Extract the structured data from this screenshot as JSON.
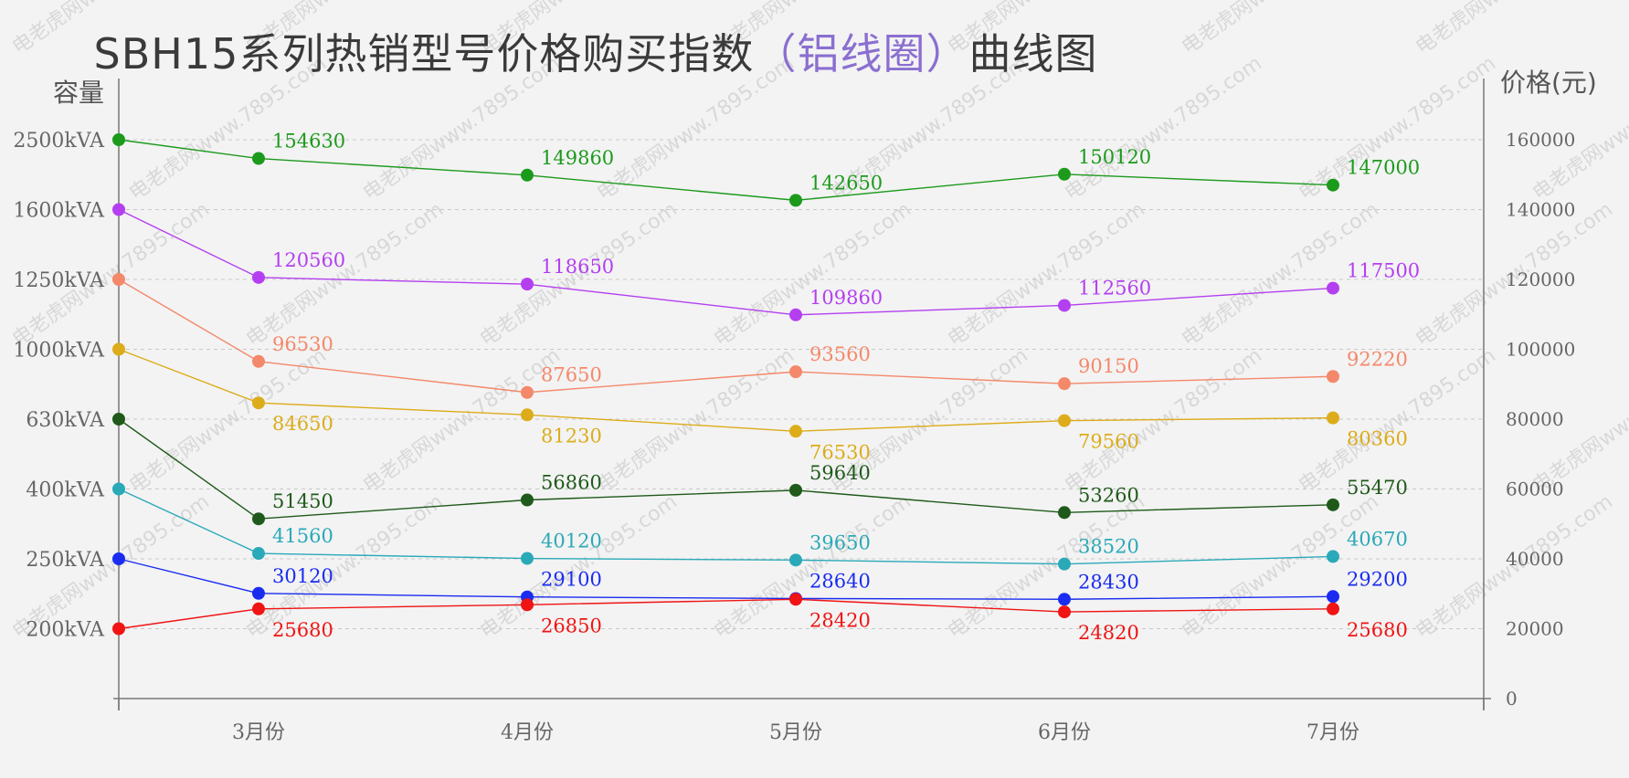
{
  "chart_data": {
    "type": "line",
    "title_parts": [
      "SBH15系列热销型号价格购买指数",
      "（",
      "铝线圈",
      "）",
      "曲线图"
    ],
    "left_axis_title": "容量",
    "right_axis_title": "价格(元)",
    "left_tick_labels": [
      "2500kVA",
      "1600kVA",
      "1250kVA",
      "1000kVA",
      "630kVA",
      "400kVA",
      "250kVA",
      "200kVA"
    ],
    "right_ticks": [
      160000,
      140000,
      120000,
      100000,
      80000,
      60000,
      40000,
      20000,
      0
    ],
    "ylim": [
      0,
      160000
    ],
    "categories": [
      "3月份",
      "4月份",
      "5月份",
      "6月份",
      "7月份"
    ],
    "grid": true,
    "series": [
      {
        "name": "2500kVA",
        "color": "#1c9a1c",
        "start": 160000,
        "values": [
          154630,
          149860,
          142650,
          150120,
          147000
        ],
        "label_pos": "above"
      },
      {
        "name": "1600kVA",
        "color": "#b43ff0",
        "start": 140000,
        "values": [
          120560,
          118650,
          109860,
          112560,
          117500
        ],
        "label_pos": "above"
      },
      {
        "name": "1250kVA",
        "color": "#f4886a",
        "start": 120000,
        "values": [
          96530,
          87650,
          93560,
          90150,
          92220
        ],
        "label_pos": "above"
      },
      {
        "name": "1000kVA",
        "color": "#dcac1a",
        "start": 100000,
        "values": [
          84650,
          81230,
          76530,
          79560,
          80360
        ],
        "label_pos": "below"
      },
      {
        "name": "630kVA",
        "color": "#1f5a1a",
        "start": 80000,
        "values": [
          51450,
          56860,
          59640,
          53260,
          55470
        ],
        "label_pos": "above"
      },
      {
        "name": "400kVA",
        "color": "#2aa9b8",
        "start": 60000,
        "values": [
          41560,
          40120,
          39650,
          38520,
          40670
        ],
        "label_pos": "above"
      },
      {
        "name": "250kVA",
        "color": "#1a2cf0",
        "start": 40000,
        "values": [
          30120,
          29100,
          28640,
          28430,
          29200
        ],
        "label_pos": "above"
      },
      {
        "name": "200kVA",
        "color": "#f01414",
        "start": 20000,
        "values": [
          25680,
          26850,
          28420,
          24820,
          25680
        ],
        "label_pos": "below"
      }
    ]
  },
  "watermark": "电老虎网www.7895.com"
}
